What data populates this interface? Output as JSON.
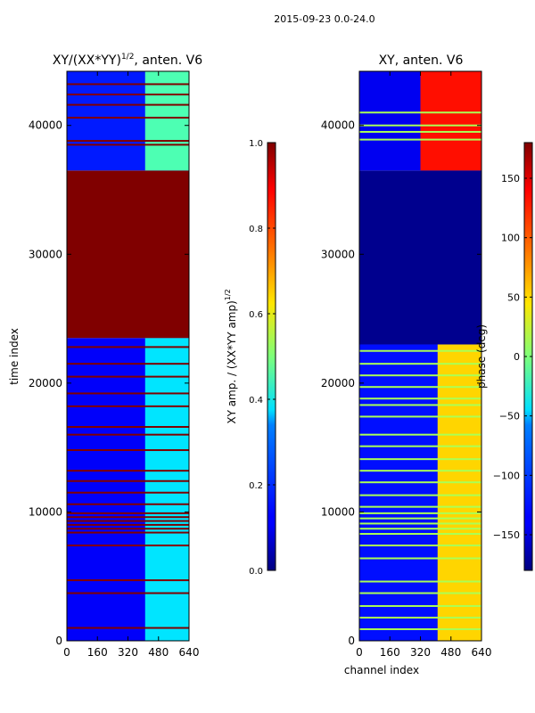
{
  "suptitle": "2015-09-23 0.0-24.0",
  "chart_data": [
    {
      "type": "heatmap",
      "title_main": "XY/(XX*YY)",
      "title_exp": "1/2",
      "title_suffix": ", anten. V6",
      "xlabel": "",
      "ylabel": "time index",
      "xlim": [
        0,
        640
      ],
      "ylim": [
        0,
        44200
      ],
      "xticks": [
        0,
        160,
        320,
        480,
        640
      ],
      "yticks": [
        0,
        10000,
        20000,
        30000,
        40000
      ],
      "colorbar": {
        "label_main": "XY amp. / (XX*YY amp)",
        "label_exp": "1/2",
        "range": [
          0.0,
          1.0
        ],
        "ticks": [
          "0.0",
          "0.2",
          "0.4",
          "0.6",
          "0.8",
          "1.0"
        ]
      },
      "regions": [
        {
          "t0": 0,
          "t1": 23500,
          "c0": 0,
          "c1": 640,
          "value": 0.12
        },
        {
          "t0": 0,
          "t1": 23500,
          "c0": 410,
          "c1": 640,
          "value": 0.35
        },
        {
          "t0": 23500,
          "t1": 36500,
          "c0": 0,
          "c1": 640,
          "value": 1.0
        },
        {
          "t0": 36500,
          "t1": 44200,
          "c0": 0,
          "c1": 640,
          "value": 0.15
        },
        {
          "t0": 36500,
          "t1": 44200,
          "c0": 410,
          "c1": 640,
          "value": 0.45
        }
      ],
      "flag_rows": [
        1000,
        3700,
        4700,
        7400,
        8400,
        8700,
        9000,
        9300,
        9600,
        9900,
        10600,
        11500,
        12400,
        13200,
        14800,
        16000,
        16600,
        18200,
        19200,
        20500,
        21500,
        22800,
        38500,
        38800,
        40600,
        41600,
        42400,
        43200
      ],
      "flag_value": 1.0
    },
    {
      "type": "heatmap",
      "title": "XY, anten. V6",
      "xlabel": "channel index",
      "ylabel": "",
      "xlim": [
        0,
        640
      ],
      "ylim": [
        0,
        44200
      ],
      "xticks": [
        0,
        160,
        320,
        480,
        640
      ],
      "yticks": [
        0,
        10000,
        20000,
        30000,
        40000
      ],
      "colorbar": {
        "label": "phase (deg)",
        "range": [
          -180,
          180
        ],
        "ticks": [
          "−150",
          "−100",
          "−50",
          "0",
          "50",
          "100",
          "150"
        ]
      },
      "regions": [
        {
          "t0": 0,
          "t1": 23000,
          "c0": 0,
          "c1": 640,
          "value": -130
        },
        {
          "t0": 0,
          "t1": 23000,
          "c0": 410,
          "c1": 640,
          "value": 60
        },
        {
          "t0": 23000,
          "t1": 36500,
          "c0": 0,
          "c1": 640,
          "value": -175
        },
        {
          "t0": 36500,
          "t1": 44200,
          "c0": 0,
          "c1": 640,
          "value": -140
        },
        {
          "t0": 36500,
          "t1": 44200,
          "c0": 320,
          "c1": 640,
          "value": 130
        }
      ],
      "flag_rows": [
        900,
        1800,
        2700,
        3700,
        4600,
        6400,
        7400,
        8300,
        8700,
        9100,
        9500,
        9900,
        10400,
        11300,
        12300,
        13200,
        14100,
        15100,
        16000,
        17400,
        18300,
        18800,
        19700,
        20600,
        21500,
        22500,
        38900,
        39500,
        40000,
        41000
      ],
      "flag_value": 15
    }
  ]
}
